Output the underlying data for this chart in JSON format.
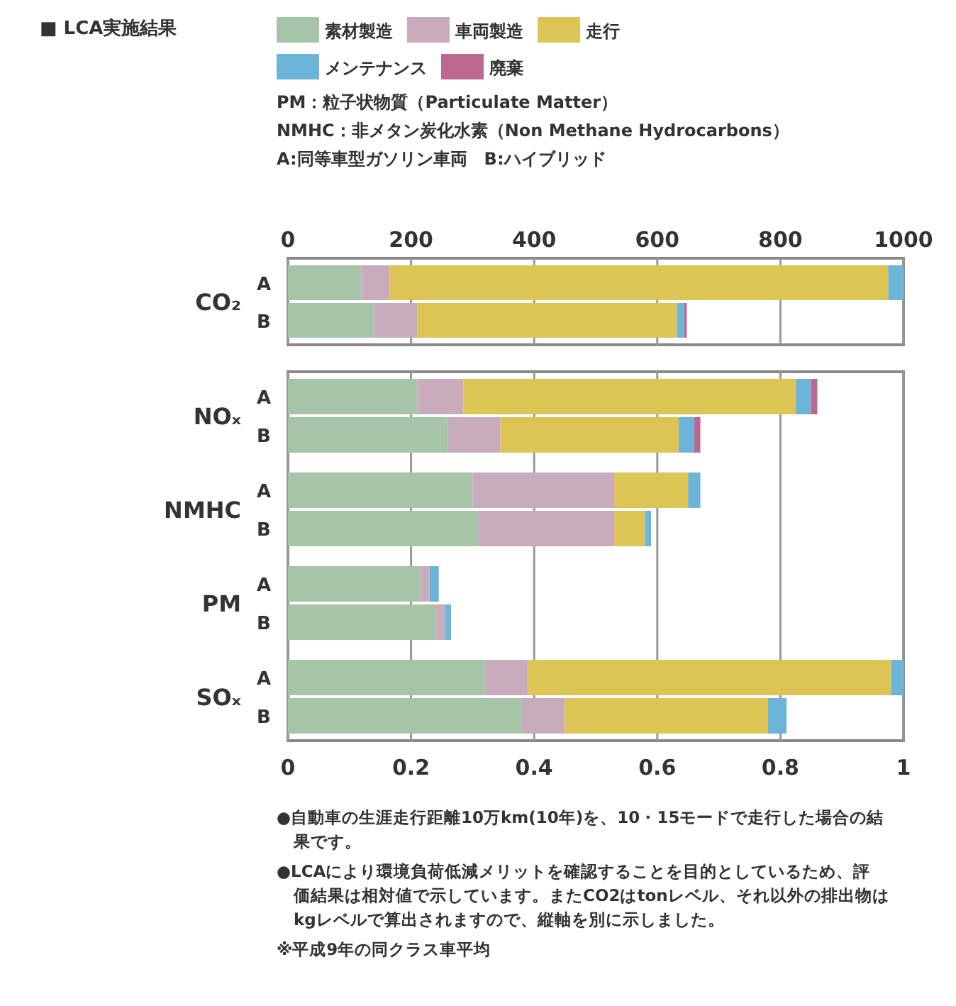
{
  "chart_data": [
    {
      "type": "bar",
      "orientation": "horizontal",
      "stacked": true,
      "title": "■ LCA実施結果",
      "subtitle": "PM：粒子状物質（Particulate Matter）\nNMHC：非メタン炭化水素（Non Methane Hydrocarbons）\nA:同等車型ガソリン車両　B:ハイブリッド",
      "legend": "top",
      "grid": "x",
      "categories": [
        "A",
        "B"
      ],
      "x2lim": [
        0,
        1000
      ],
      "x2ticks": [
        0,
        200,
        400,
        600,
        800,
        1000
      ],
      "annotations": [
        {
          "text": "CO₂"
        }
      ],
      "series": [
        {
          "name": "素材製造",
          "color": "#a6c4a8",
          "axis": "x2",
          "values": [
            119,
            140
          ]
        },
        {
          "name": "車両製造",
          "color": "#c8acbc",
          "axis": "x2",
          "values": [
            46,
            70
          ]
        },
        {
          "name": "走行",
          "color": "#dcc455",
          "axis": "x2",
          "values": [
            810,
            422
          ]
        },
        {
          "name": "メンテナンス",
          "color": "#6cb4d8",
          "axis": "x2",
          "values": [
            25,
            12
          ]
        },
        {
          "name": "廃棄",
          "color": "#bc6890",
          "axis": "x2",
          "values": [
            0,
            4
          ]
        }
      ]
    },
    {
      "type": "bar",
      "orientation": "horizontal",
      "stacked": true,
      "grid": "x",
      "categories": [
        "A",
        "B",
        "A",
        "B",
        "A",
        "B",
        "A",
        "B"
      ],
      "xlim": [
        0,
        1
      ],
      "xticks": [
        0,
        0.2,
        0.4,
        0.6,
        0.8,
        1
      ],
      "annotations": [
        {
          "text": "NOₓ"
        },
        {
          "text": "NMHC"
        },
        {
          "text": "PM"
        },
        {
          "text": "SOₓ"
        },
        "●自動車の生涯走行距離10万km(10年)を、10・15モードで走行した場合の結果です。",
        "●LCAにより環境負荷低減メリットを確認することを目的としているため、評価結果は相対値で示しています。またCO2はtonレベル、それ以外の排出物はkgレベルで算出されますので、縦軸を別に示しました。",
        "※平成9年の同クラス車平均"
      ],
      "series": [
        {
          "color": "#a6c4a8",
          "values": [
            0.21,
            0.26,
            0.3,
            0.31,
            0.215,
            0.24,
            0.32,
            0.38
          ]
        },
        {
          "color": "#c8acbc",
          "values": [
            0.075,
            0.085,
            0.23,
            0.22,
            0.015,
            0.015,
            0.07,
            0.07
          ]
        },
        {
          "color": "#dcc455",
          "values": [
            0.54,
            0.29,
            0.12,
            0.05,
            0,
            0,
            0.59,
            0.33
          ]
        },
        {
          "color": "#6cb4d8",
          "values": [
            0.025,
            0.025,
            0.02,
            0.01,
            0.015,
            0.01,
            0.02,
            0.03
          ]
        },
        {
          "color": "#bc6890",
          "values": [
            0.01,
            0.01,
            0,
            0,
            0,
            0,
            0,
            0
          ]
        }
      ]
    }
  ]
}
